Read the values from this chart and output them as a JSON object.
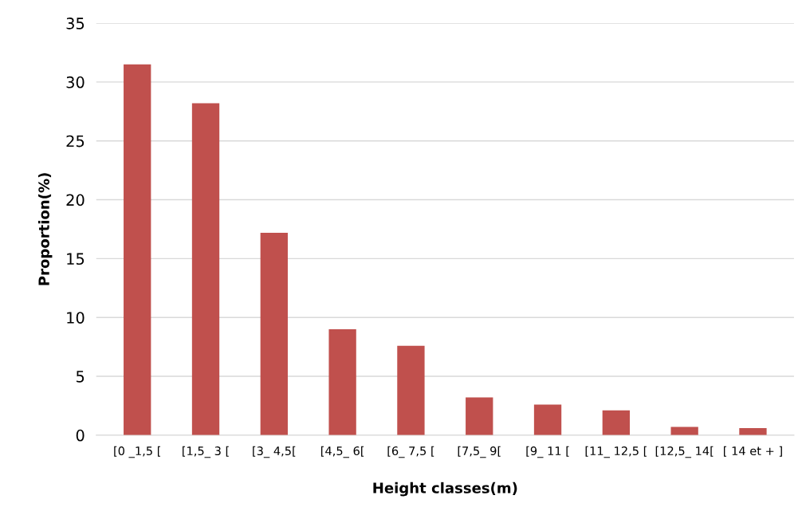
{
  "chart_data": {
    "type": "bar",
    "xlabel": "Height classes(m)",
    "ylabel": "Proportion(%)",
    "categories": [
      "[0 _1,5 [",
      "[1,5_ 3 [",
      "[3_ 4,5[",
      "[4,5_ 6[",
      "[6_ 7,5 [",
      "[7,5_ 9[",
      "[9_ 11 [",
      "[11_ 12,5 [",
      "[12,5_ 14[",
      "[ 14 et + ]"
    ],
    "values": [
      31.5,
      28.2,
      17.2,
      9.0,
      7.6,
      3.2,
      2.6,
      2.1,
      0.7,
      0.6
    ],
    "color": "#c0504d",
    "ylim": [
      0,
      35
    ],
    "yticks": [
      0,
      5,
      10,
      15,
      20,
      25,
      30,
      35
    ],
    "grid": "y",
    "legend": false
  }
}
